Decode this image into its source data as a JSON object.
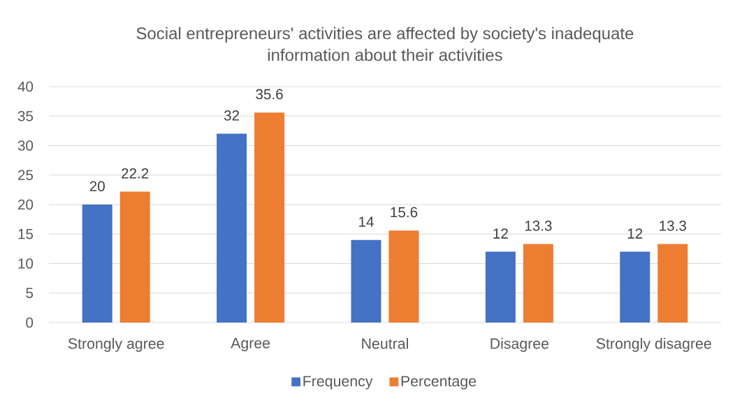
{
  "chart_data": {
    "type": "bar",
    "title": "Social entrepreneurs' activities are affected by society's inadequate information about their activities",
    "categories": [
      "Strongly agree",
      "Agree",
      "Neutral",
      "Disagree",
      "Strongly disagree"
    ],
    "series": [
      {
        "name": "Frequency",
        "color": "#4472c4",
        "values": [
          20,
          32,
          14,
          12,
          12
        ]
      },
      {
        "name": "Percentage",
        "color": "#ed7d31",
        "values": [
          22.2,
          35.6,
          15.6,
          13.3,
          13.3
        ]
      }
    ],
    "ylim": [
      0,
      40
    ],
    "yticks": [
      0,
      5,
      10,
      15,
      20,
      25,
      30,
      35,
      40
    ],
    "grid": "y",
    "legend": "bottom",
    "data_labels": true
  }
}
